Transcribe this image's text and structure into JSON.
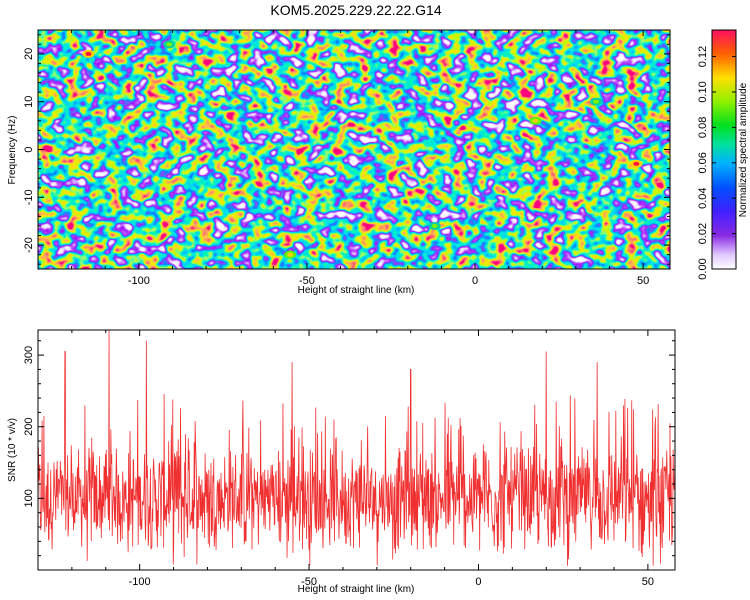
{
  "title": "KOM5.2025.229.22.22.G14",
  "chart_data": [
    {
      "type": "heatmap",
      "xlabel": "Height of straight line (km)",
      "ylabel": "Frequency (Hz)",
      "xlim": [
        -130,
        58
      ],
      "ylim": [
        -25,
        25
      ],
      "xticks": [
        -100,
        -50,
        0,
        50
      ],
      "xtick_labels": [
        "-100",
        "-50",
        "0",
        "50"
      ],
      "yticks": [
        -20,
        -10,
        0,
        10,
        20
      ],
      "ytick_labels": [
        "-20",
        "-10",
        "0",
        "10",
        "20"
      ],
      "colorbar": {
        "label": "Normalized spectral amplitude",
        "range": [
          0.0,
          0.135
        ],
        "ticks": [
          0.0,
          0.02,
          0.04,
          0.06,
          0.08,
          0.1,
          0.12
        ],
        "tick_labels": [
          "0.00",
          "0.02",
          "0.04",
          "0.06",
          "0.08",
          "0.10",
          "0.12"
        ]
      },
      "hotspots": [
        {
          "x": -115,
          "y": 20,
          "value": 0.125
        },
        {
          "x": -55,
          "y": -22,
          "value": 0.11
        },
        {
          "x": 48,
          "y": -3,
          "value": 0.12
        },
        {
          "x": 18,
          "y": 6,
          "value": 0.1
        },
        {
          "x": -12,
          "y": -16,
          "value": 0.09
        },
        {
          "x": -91,
          "y": 22,
          "value": 0.08
        },
        {
          "x": 36,
          "y": 10,
          "value": 0.085
        }
      ]
    },
    {
      "type": "line",
      "xlabel": "Height of straight line (km)",
      "ylabel": "SNR (10 * v/v)",
      "xlim": [
        -130,
        58
      ],
      "ylim": [
        0,
        335
      ],
      "xticks": [
        -100,
        -50,
        0,
        50
      ],
      "xtick_labels": [
        "-100",
        "-50",
        "0",
        "50"
      ],
      "yticks": [
        100,
        200,
        300
      ],
      "ytick_labels": [
        "100",
        "200",
        "300"
      ],
      "series": [
        {
          "name": "SNR",
          "color": "#f03030",
          "mean": 100,
          "spread": 45,
          "max": 335,
          "min": 5,
          "samples": 1400
        }
      ],
      "peaks": [
        {
          "x": -109,
          "y": 335
        },
        {
          "x": -98,
          "y": 320
        },
        {
          "x": -122,
          "y": 305
        },
        {
          "x": -55,
          "y": 290
        },
        {
          "x": 20,
          "y": 305
        },
        {
          "x": 35,
          "y": 290
        },
        {
          "x": -20,
          "y": 280
        }
      ]
    }
  ]
}
